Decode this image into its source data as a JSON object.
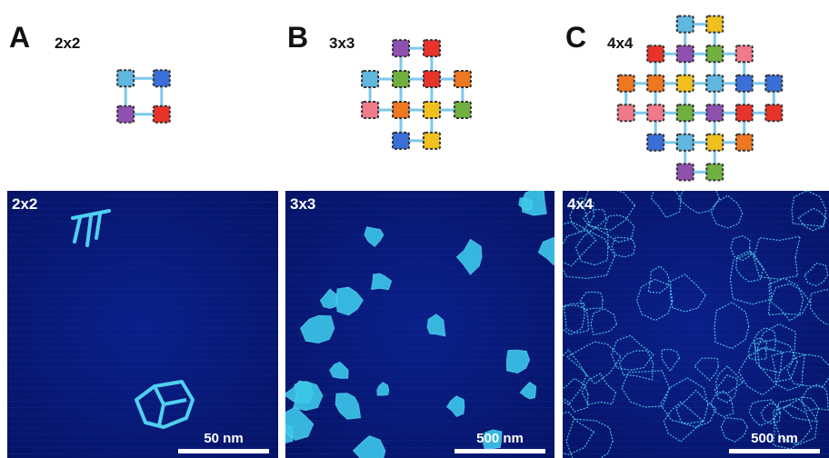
{
  "panels": [
    {
      "letter": "A",
      "title": "2x2",
      "image_label": "2x2",
      "scale_bar": "50 nm"
    },
    {
      "letter": "B",
      "title": "3x3",
      "image_label": "3x3",
      "scale_bar": "500 nm"
    },
    {
      "letter": "C",
      "title": "4x4",
      "image_label": "4x4",
      "scale_bar": "500 nm"
    }
  ]
}
